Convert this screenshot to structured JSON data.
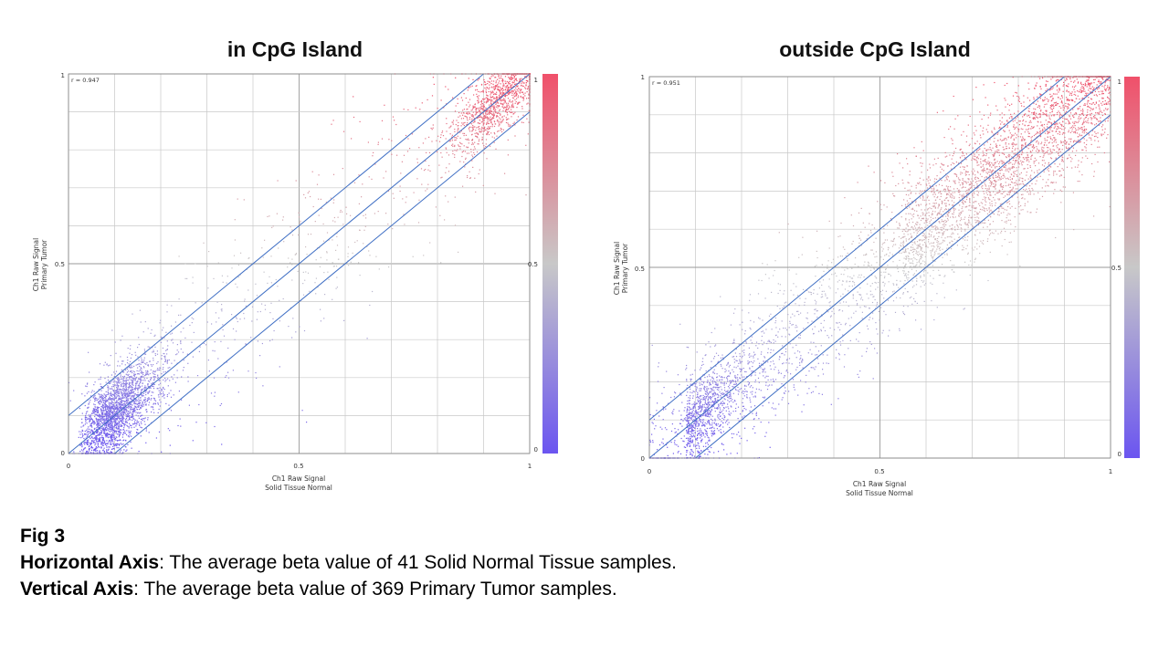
{
  "chart_data": [
    {
      "type": "scatter",
      "title": "in CpG Island",
      "xlabel": [
        "Ch1 Raw Signal",
        "Solid Tissue Normal"
      ],
      "ylabel": [
        "Ch1 Raw Signal",
        "Primary Tumor"
      ],
      "xlim": [
        0,
        1
      ],
      "ylim": [
        0,
        1
      ],
      "x_ticks": [
        "0",
        "0.5",
        "1"
      ],
      "y_ticks": [
        "0",
        "0.5",
        "1"
      ],
      "grid": true,
      "correlation_label": "r = 0.947",
      "reference_lines": [
        {
          "name": "identity",
          "slope": 1,
          "intercept": 0
        },
        {
          "name": "upper",
          "slope": 1,
          "intercept": 0.1
        },
        {
          "name": "lower",
          "slope": 1,
          "intercept": -0.1
        }
      ],
      "colorbar": {
        "ticks": [
          "0",
          "0.5",
          "1"
        ],
        "low_color": "#6b55f0",
        "mid_color": "#c8c8c8",
        "high_color": "#f0506a"
      },
      "density": {
        "description": "dense cluster near 0-0.15 and near 0.85-1",
        "low_cluster_center": 0.05,
        "high_cluster_center": 0.93
      }
    },
    {
      "type": "scatter",
      "title": "outside CpG Island",
      "xlabel": [
        "Ch1 Raw Signal",
        "Solid Tissue Normal"
      ],
      "ylabel": [
        "Ch1 Raw Signal",
        "Primary Tumor"
      ],
      "xlim": [
        0,
        1
      ],
      "ylim": [
        0,
        1
      ],
      "x_ticks": [
        "0",
        "0.5",
        "1"
      ],
      "y_ticks": [
        "0",
        "0.5",
        "1"
      ],
      "grid": true,
      "correlation_label": "r = 0.951",
      "reference_lines": [
        {
          "name": "identity",
          "slope": 1,
          "intercept": 0
        },
        {
          "name": "upper",
          "slope": 1,
          "intercept": 0.1
        },
        {
          "name": "lower",
          "slope": 1,
          "intercept": -0.1
        }
      ],
      "colorbar": {
        "ticks": [
          "0",
          "0.5",
          "1"
        ],
        "low_color": "#6b55f0",
        "mid_color": "#c8c8c8",
        "high_color": "#f0506a"
      },
      "density": {
        "description": "broad diagonal band, denser at high values",
        "low_cluster_center": 0.08,
        "high_cluster_center": 0.85
      }
    }
  ],
  "caption": {
    "fig_label": "Fig 3",
    "h_label": "Horizontal Axis",
    "h_text": ": The average beta value of 41 Solid Normal Tissue samples.",
    "v_label": "Vertical Axis",
    "v_text": ": The average beta value of 369 Primary Tumor samples."
  }
}
